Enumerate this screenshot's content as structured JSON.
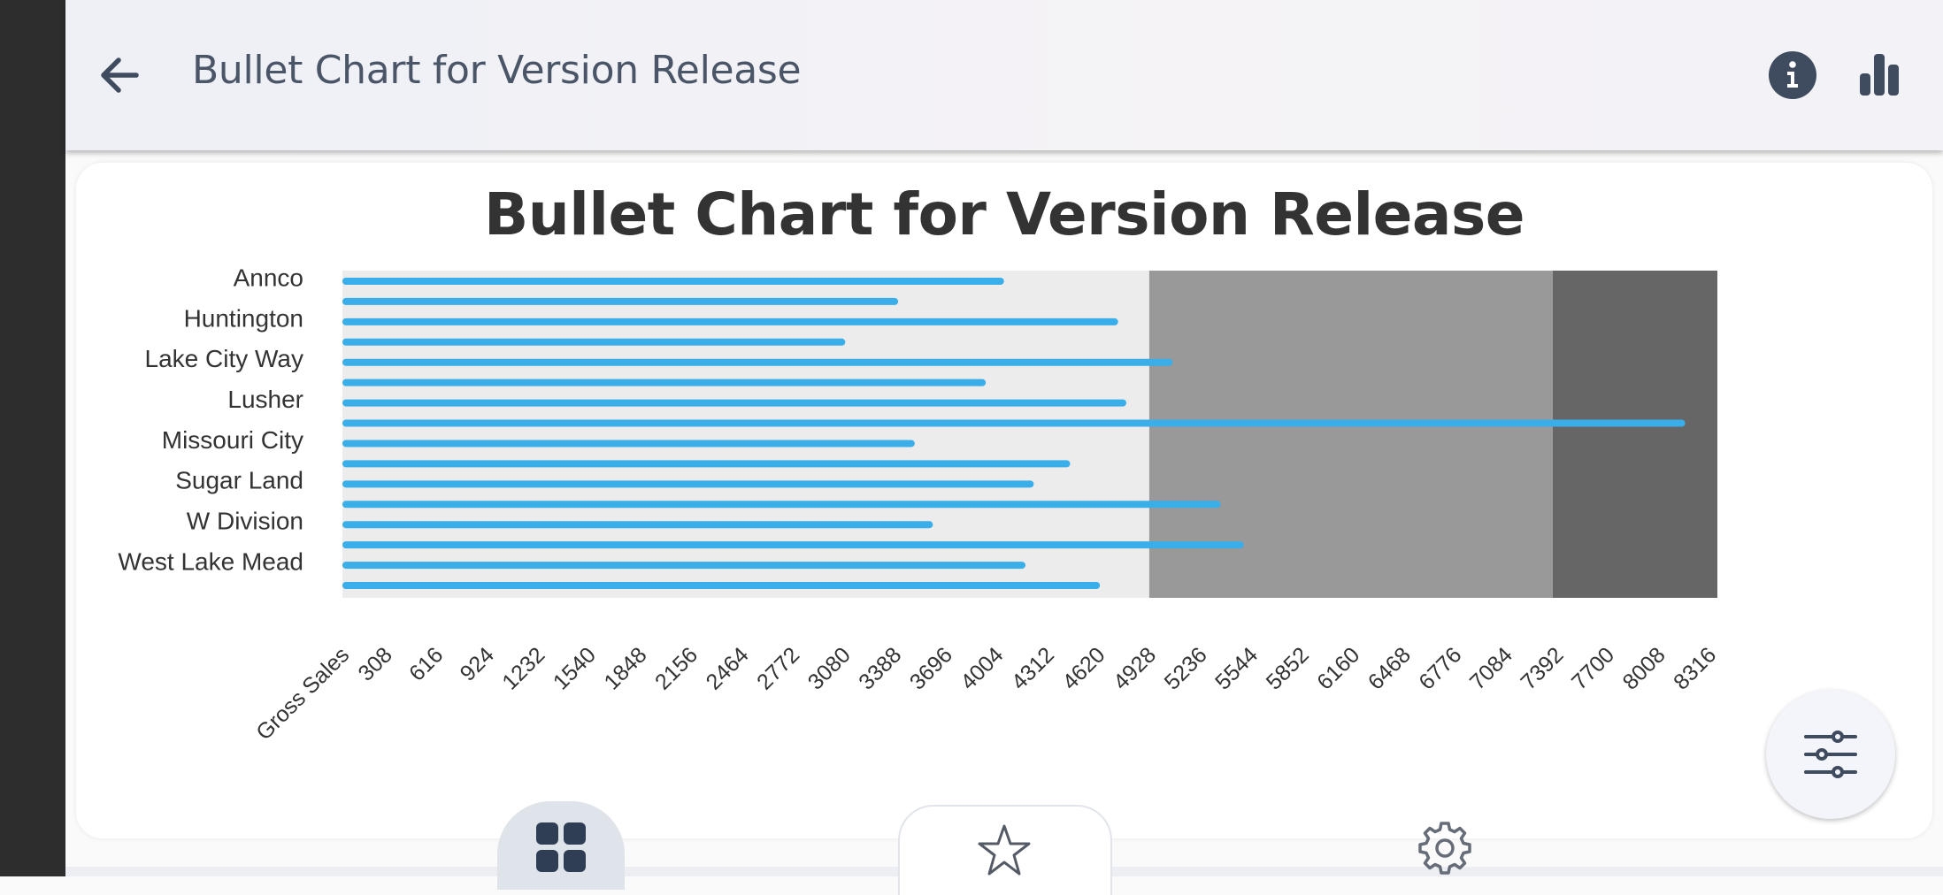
{
  "app_bar": {
    "title": "Bullet Chart for Version Release",
    "back_icon": "arrow-left-icon",
    "info_icon": "info-circle-icon",
    "chart_icon": "bar-chart-icon"
  },
  "fab": {
    "icon": "sliders-icon"
  },
  "bottom_nav": {
    "items": [
      "grid-icon",
      "star-icon",
      "gear-icon"
    ]
  },
  "colors": {
    "bar": "#3aaee8",
    "range_low": "#ececec",
    "range_mid": "#999999",
    "range_high": "#666666",
    "title": "#333333"
  },
  "chart_data": {
    "type": "bar",
    "orientation": "horizontal",
    "subtype": "bullet",
    "title": "Bullet Chart for Version Release",
    "xlabel": "Gross Sales",
    "categories": [
      "Annco",
      "Huntington",
      "Lake City Way",
      "Lusher",
      "Missouri City",
      "Sugar Land",
      "W Division",
      "West Lake Mead"
    ],
    "ticks": [
      308,
      616,
      924,
      1232,
      1540,
      1848,
      2156,
      2464,
      2772,
      3080,
      3388,
      3696,
      4004,
      4312,
      4620,
      4928,
      5236,
      5544,
      5852,
      6160,
      6468,
      6776,
      7084,
      7392,
      7700,
      8008,
      8316
    ],
    "xlim": [
      0,
      8316
    ],
    "ranges": [
      {
        "from": 0,
        "to": 4880
      },
      {
        "from": 4880,
        "to": 7320
      },
      {
        "from": 7320,
        "to": 8316
      }
    ],
    "bars": [
      {
        "category": "Annco",
        "value": 3980
      },
      {
        "category": "Annco",
        "value": 3340
      },
      {
        "category": "Huntington",
        "value": 4670
      },
      {
        "category": "Huntington",
        "value": 3020
      },
      {
        "category": "Lake City Way",
        "value": 5000
      },
      {
        "category": "Lake City Way",
        "value": 3870
      },
      {
        "category": "Lusher",
        "value": 4720
      },
      {
        "category": "Lusher",
        "value": 8100
      },
      {
        "category": "Missouri City",
        "value": 3440
      },
      {
        "category": "Missouri City",
        "value": 4380
      },
      {
        "category": "Sugar Land",
        "value": 4160
      },
      {
        "category": "Sugar Land",
        "value": 5290
      },
      {
        "category": "W Division",
        "value": 3550
      },
      {
        "category": "W Division",
        "value": 5430
      },
      {
        "category": "West Lake Mead",
        "value": 4110
      },
      {
        "category": "West Lake Mead",
        "value": 4560
      }
    ],
    "grid": false,
    "legend": "none"
  }
}
